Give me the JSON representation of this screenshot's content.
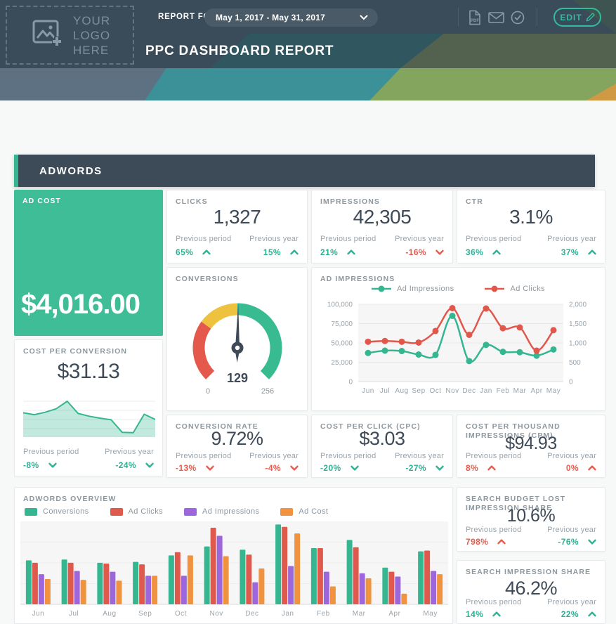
{
  "header": {
    "logo_line1": "YOUR LOGO",
    "logo_line2": "HERE",
    "report_for_label": "REPORT FOR",
    "date_range": "May 1, 2017 - May 31, 2017",
    "edit_label": "EDIT",
    "title": "PPC DASHBOARD REPORT"
  },
  "section": {
    "title": "ADWORDS"
  },
  "labels": {
    "previous_period": "Previous period",
    "previous_year": "Previous year"
  },
  "colors": {
    "accent_teal": "#35b690",
    "positive": "#2eb094",
    "negative": "#e8594b",
    "red": "#e2574c",
    "purple": "#9d66db",
    "orange": "#f0923e",
    "gauge_red": "#e4594b",
    "gauge_yellow": "#eec23f",
    "gauge_green": "#39bb92",
    "dark_slate": "#3e4a57",
    "card_green": "#3ebd97"
  },
  "cards": {
    "ad_cost": {
      "label": "AD COST",
      "value": "$4,016.00"
    },
    "clicks": {
      "label": "CLICKS",
      "value": "1,327",
      "pp": {
        "v": "65%",
        "dir": "up",
        "tone": "pos"
      },
      "py": {
        "v": "15%",
        "dir": "up",
        "tone": "pos"
      }
    },
    "impressions": {
      "label": "IMPRESSIONS",
      "value": "42,305",
      "pp": {
        "v": "21%",
        "dir": "up",
        "tone": "pos"
      },
      "py": {
        "v": "-16%",
        "dir": "down",
        "tone": "neg"
      }
    },
    "ctr": {
      "label": "CTR",
      "value": "3.1%",
      "pp": {
        "v": "36%",
        "dir": "up",
        "tone": "pos"
      },
      "py": {
        "v": "37%",
        "dir": "up",
        "tone": "pos"
      }
    },
    "cost_per_conversion": {
      "label": "COST PER CONVERSION",
      "value": "$31.13",
      "pp": {
        "v": "-8%",
        "dir": "down",
        "tone": "pos"
      },
      "py": {
        "v": "-24%",
        "dir": "down",
        "tone": "pos"
      }
    },
    "conversion_rate": {
      "label": "CONVERSION RATE",
      "value": "9.72%",
      "pp": {
        "v": "-13%",
        "dir": "down",
        "tone": "neg"
      },
      "py": {
        "v": "-4%",
        "dir": "down",
        "tone": "neg"
      }
    },
    "cpc": {
      "label": "COST PER CLICK (CPC)",
      "value": "$3.03",
      "pp": {
        "v": "-20%",
        "dir": "down",
        "tone": "pos"
      },
      "py": {
        "v": "-27%",
        "dir": "down",
        "tone": "pos"
      }
    },
    "cpm": {
      "label": "COST PER THOUSAND IMPRESSIONS (CPM)",
      "value": "$94.93",
      "pp": {
        "v": "8%",
        "dir": "up",
        "tone": "neg"
      },
      "py": {
        "v": "0%",
        "dir": "up",
        "tone": "neg"
      }
    },
    "search_budget_lost": {
      "label": "SEARCH BUDGET LOST IMPRESSION SHARE",
      "value": "10.6%",
      "pp": {
        "v": "798%",
        "dir": "up",
        "tone": "neg"
      },
      "py": {
        "v": "-76%",
        "dir": "down",
        "tone": "pos"
      }
    },
    "search_impression_share": {
      "label": "SEARCH IMPRESSION SHARE",
      "value": "46.2%",
      "pp": {
        "v": "14%",
        "dir": "up",
        "tone": "pos"
      },
      "py": {
        "v": "22%",
        "dir": "up",
        "tone": "pos"
      }
    }
  },
  "chart_data": [
    {
      "type": "gauge",
      "title": "CONVERSIONS",
      "value": 129,
      "value_label": "129",
      "min": 0,
      "max": 256,
      "min_label": "0",
      "max_label": "256",
      "sweep_deg": 270,
      "segments": [
        {
          "color": "#e4594b",
          "from": 0.0,
          "to": 0.3
        },
        {
          "color": "#eec23f",
          "from": 0.3,
          "to": 0.5
        },
        {
          "color": "#39bb92",
          "from": 0.5,
          "to": 1.0
        }
      ]
    },
    {
      "type": "line",
      "title": "AD IMPRESSIONS",
      "categories": [
        "Jun",
        "Jul",
        "Aug",
        "Sep",
        "Oct",
        "Nov",
        "Dec",
        "Jan",
        "Feb",
        "Mar",
        "Apr",
        "May"
      ],
      "series": [
        {
          "name": "Ad Impressions",
          "color": "#35b690",
          "axis": "left",
          "values": [
            37000,
            40000,
            39500,
            35000,
            34500,
            85000,
            26500,
            47500,
            38500,
            38000,
            33500,
            41500
          ]
        },
        {
          "name": "Ad Clicks",
          "color": "#e2574c",
          "axis": "right",
          "values": [
            1030,
            1050,
            1030,
            1010,
            1310,
            1900,
            1210,
            1890,
            1380,
            1400,
            800,
            1330
          ]
        }
      ],
      "left_axis": {
        "max": 100000,
        "ticks": [
          "100,000",
          "75,000",
          "50,000",
          "25,000",
          "0"
        ]
      },
      "right_axis": {
        "max": 2000,
        "ticks": [
          "2,000",
          "1,500",
          "1,000",
          "500",
          "0"
        ]
      },
      "grid": true,
      "legend_position": "top"
    },
    {
      "type": "area",
      "title": "COST PER CONVERSION",
      "color": "#35b690",
      "values_relative": [
        0.62,
        0.57,
        0.63,
        0.72,
        0.91,
        0.6,
        0.53,
        0.48,
        0.44,
        0.12,
        0.11,
        0.58,
        0.45
      ],
      "grid": true
    },
    {
      "type": "bar",
      "title": "ADWORDS OVERVIEW",
      "categories": [
        "Jun",
        "Jul",
        "Aug",
        "Sep",
        "Oct",
        "Nov",
        "Dec",
        "Jan",
        "Feb",
        "Mar",
        "Apr",
        "May"
      ],
      "ymax": 100,
      "series": [
        {
          "name": "Conversions",
          "color": "#35b690",
          "values": [
            54,
            55,
            51,
            52,
            60,
            71,
            67,
            98,
            69,
            79,
            45,
            65
          ]
        },
        {
          "name": "Ad Clicks",
          "color": "#df5a4d",
          "values": [
            51,
            51,
            50,
            49,
            64,
            94,
            61,
            95,
            69,
            70,
            40,
            66
          ]
        },
        {
          "name": "Ad Impressions",
          "color": "#9d66db",
          "values": [
            37,
            41,
            40,
            35,
            35,
            84,
            27,
            47,
            40,
            38,
            34,
            41
          ]
        },
        {
          "name": "Ad Cost",
          "color": "#f0923e",
          "values": [
            31,
            30,
            29,
            35,
            60,
            59,
            44,
            87,
            22,
            32,
            13,
            37
          ]
        }
      ],
      "grid": true,
      "legend_position": "top"
    }
  ]
}
